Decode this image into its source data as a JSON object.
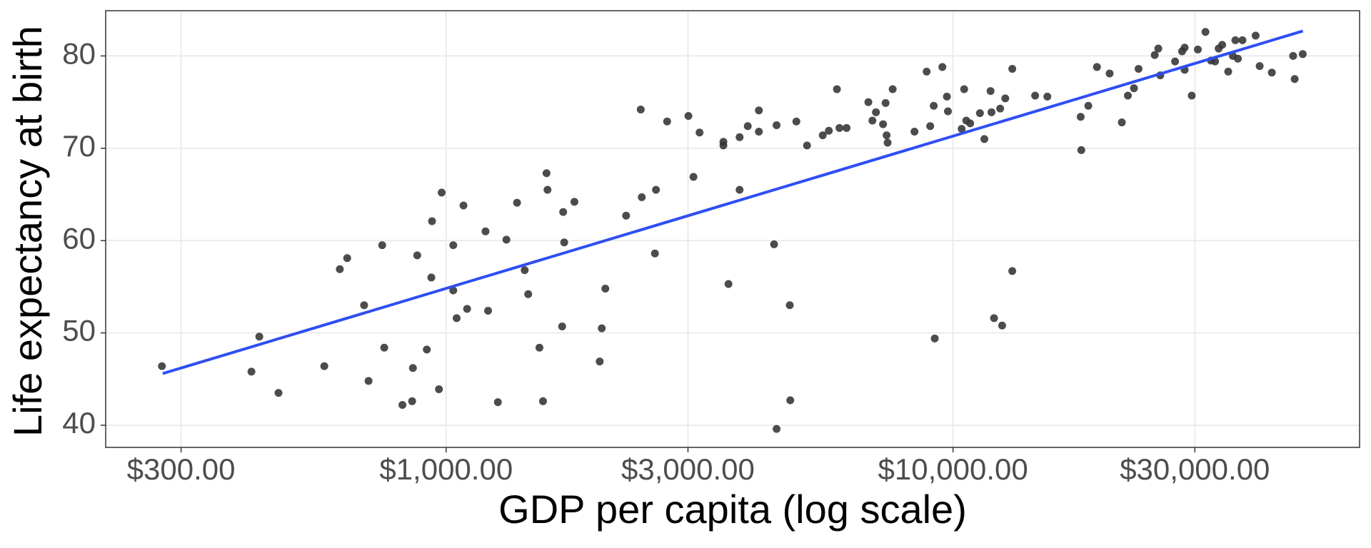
{
  "chart_data": {
    "type": "scatter",
    "xlabel": "GDP per capita (log scale)",
    "ylabel": "Life expectancy at birth",
    "xscale": "log",
    "grid": true,
    "color": "#333333",
    "x": [
      275,
      413,
      428,
      467,
      575,
      617,
      638,
      689,
      703,
      748,
      755,
      820,
      857,
      860,
      877,
      916,
      935,
      938,
      968,
      980,
      1033,
      1033,
      1049,
      1082,
      1100,
      1196,
      1210,
      1265,
      1315,
      1380,
      1429,
      1452,
      1528,
      1553,
      1578,
      1585,
      1694,
      1702,
      1710,
      1791,
      2009,
      2028,
      2061,
      2265,
      2432,
      2421,
      2594,
      2582,
      2729,
      3006,
      3076,
      3162,
      3524,
      3524,
      3606,
      3793,
      3793,
      3936,
      4140,
      4140,
      4436,
      4487,
      4487,
      4764,
      4775,
      4909,
      5152,
      5534,
      5689,
      5902,
      5970,
      6166,
      6808,
      6934,
      7047,
      7278,
      7362,
      7396,
      7430,
      7603,
      8395,
      8872,
      9016,
      9162,
      9204,
      9528,
      9727,
      9772,
      10400,
      10520,
      10620,
      10810,
      11300,
      11530,
      11860,
      11910,
      12050,
      12390,
      12500,
      12680,
      13090,
      13090,
      14520,
      15350,
      17860,
      17910,
      18490,
      19230,
      20370,
      21530,
      22130,
      22750,
      23230,
      25000,
      25410,
      25640,
      27420,
      28310,
      28640,
      28640,
      29580,
      30410,
      31480,
      32280,
      32890,
      33420,
      33960,
      34910,
      35650,
      36060,
      36480,
      37240,
      39540,
      40270,
      42560,
      46880,
      47210,
      48980
    ],
    "values": [
      46.4,
      45.8,
      49.6,
      43.5,
      46.4,
      56.9,
      58.1,
      53.0,
      44.8,
      59.5,
      48.4,
      42.2,
      42.6,
      46.2,
      58.4,
      48.2,
      56.0,
      62.1,
      43.9,
      65.2,
      59.5,
      54.6,
      51.6,
      63.8,
      52.6,
      61.0,
      52.4,
      42.5,
      60.1,
      64.1,
      56.8,
      54.2,
      48.4,
      42.6,
      67.3,
      65.5,
      50.7,
      63.1,
      59.8,
      64.2,
      46.9,
      50.5,
      54.8,
      62.7,
      64.7,
      74.2,
      65.5,
      58.6,
      72.9,
      73.5,
      66.9,
      71.7,
      70.7,
      70.3,
      55.3,
      71.2,
      65.5,
      72.4,
      74.1,
      71.8,
      59.6,
      72.5,
      39.6,
      53.0,
      42.7,
      72.9,
      70.3,
      71.4,
      71.9,
      76.4,
      72.2,
      72.2,
      75.0,
      73.0,
      73.9,
      72.6,
      74.9,
      71.4,
      70.6,
      76.4,
      71.8,
      78.3,
      72.4,
      74.6,
      49.4,
      78.8,
      75.6,
      74.0,
      72.1,
      76.4,
      73.0,
      72.7,
      73.8,
      71.0,
      76.2,
      73.9,
      51.6,
      74.3,
      50.8,
      75.4,
      56.7,
      78.6,
      75.7,
      75.6,
      73.4,
      69.8,
      74.6,
      78.8,
      78.1,
      72.8,
      75.7,
      76.5,
      78.6,
      80.1,
      80.8,
      77.9,
      79.4,
      80.5,
      80.9,
      78.5,
      75.7,
      80.7,
      82.6,
      79.5,
      79.4,
      80.8,
      81.2,
      78.3,
      80.0,
      81.7,
      79.7,
      81.7,
      82.2,
      78.9,
      78.2,
      80.0,
      77.5,
      80.2
    ],
    "trend": {
      "type": "line",
      "color": "#2f4ef2",
      "x": [
        276,
        49000
      ],
      "values": [
        45.6,
        82.7
      ]
    },
    "xlim": [
      213,
      63400
    ],
    "ylim": [
      37.6,
      84.9
    ],
    "xticks": [
      {
        "value": 300,
        "label": "$300.00"
      },
      {
        "value": 1000,
        "label": "$1,000.00"
      },
      {
        "value": 3000,
        "label": "$3,000.00"
      },
      {
        "value": 10000,
        "label": "$10,000.00"
      },
      {
        "value": 30000,
        "label": "$30,000.00"
      }
    ],
    "yticks": [
      40,
      50,
      60,
      70,
      80
    ]
  }
}
